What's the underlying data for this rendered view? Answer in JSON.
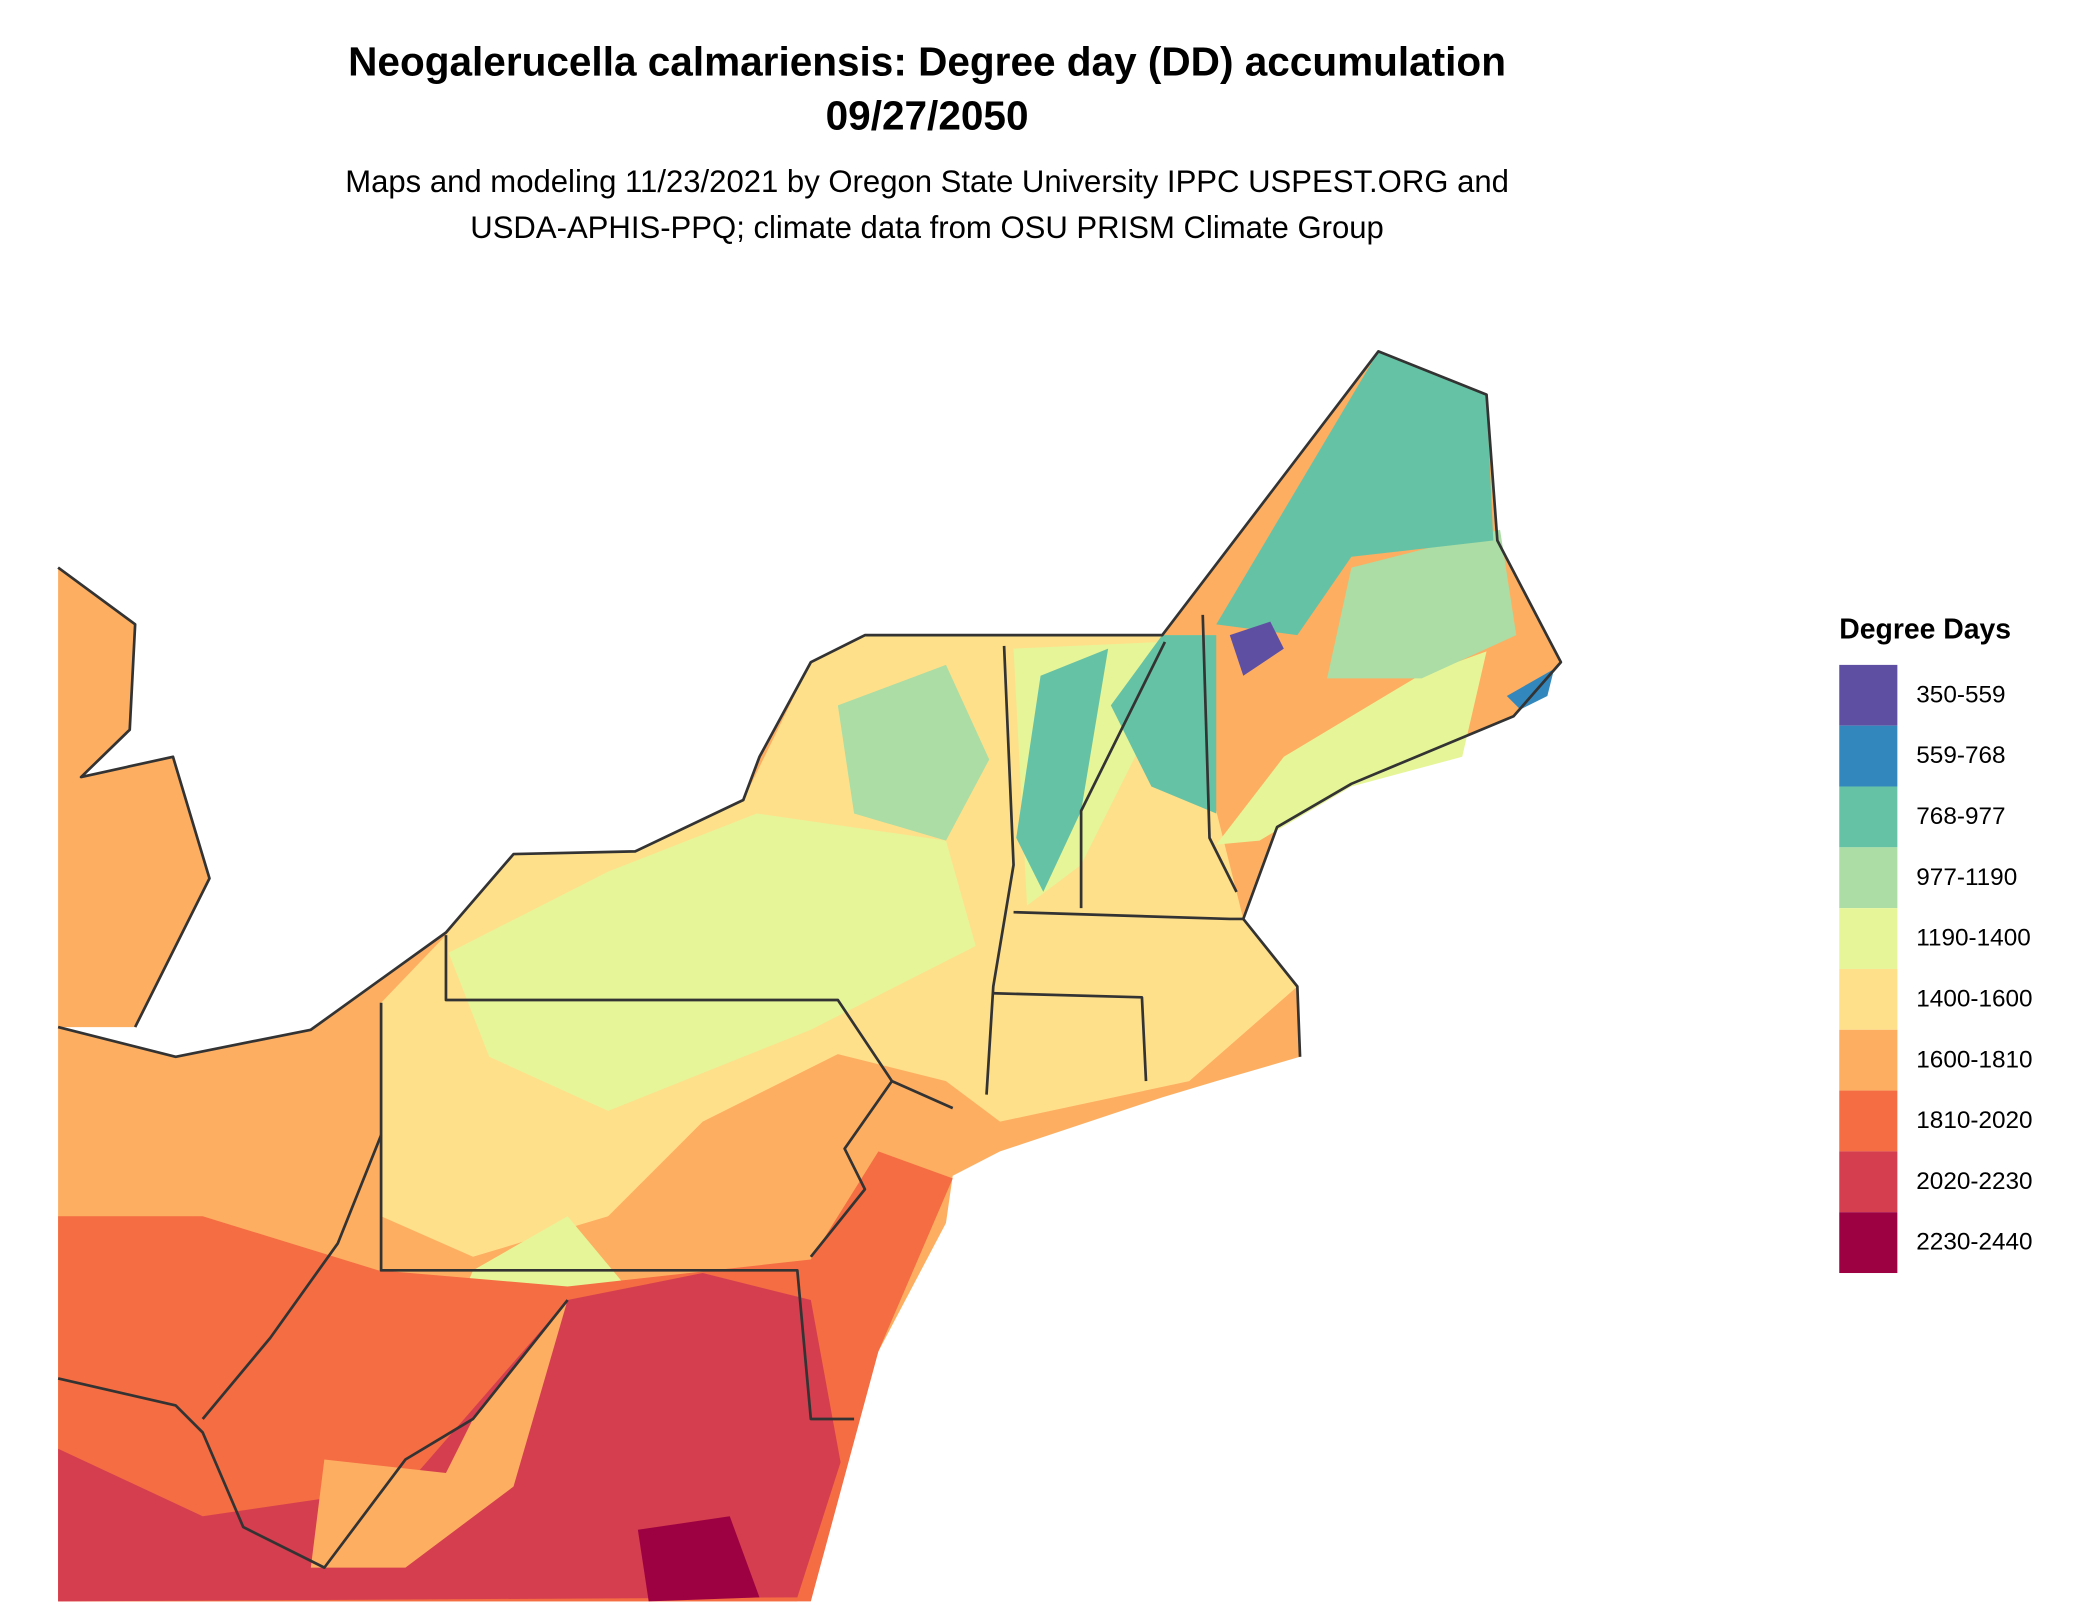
{
  "title": {
    "line1": "Neogalerucella calmariensis: Degree day (DD) accumulation",
    "line2": "09/27/2050",
    "subtitle1": "Maps and modeling 11/23/2021 by Oregon State University IPPC USPEST.ORG and",
    "subtitle2": "USDA-APHIS-PPQ; climate data from OSU PRISM Climate Group"
  },
  "legend": {
    "title": "Degree Days",
    "items": [
      {
        "label": "350-559",
        "color": "#5e4fa2"
      },
      {
        "label": "559-768",
        "color": "#3288bd"
      },
      {
        "label": "768-977",
        "color": "#66c2a5"
      },
      {
        "label": "977-1190",
        "color": "#abdda4"
      },
      {
        "label": "1190-1400",
        "color": "#e6f598"
      },
      {
        "label": "1400-1600",
        "color": "#fee08b"
      },
      {
        "label": "1600-1810",
        "color": "#fdae61"
      },
      {
        "label": "1810-2020",
        "color": "#f46d43"
      },
      {
        "label": "2020-2230",
        "color": "#d53e4f"
      },
      {
        "label": "2230-2440",
        "color": "#9e0142"
      }
    ]
  }
}
